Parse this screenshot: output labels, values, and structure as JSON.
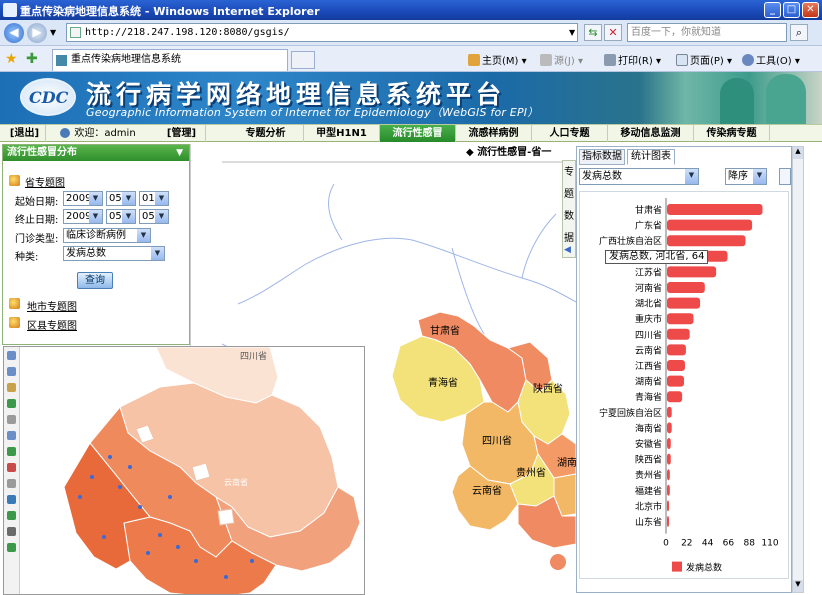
{
  "browser": {
    "window_title": "重点传染病地理信息系统 - Windows Internet Explorer",
    "url": "http://218.247.198.120:8080/gsgis/",
    "search_placeholder": "百度一下，你就知道",
    "tab_title": "重点传染病地理信息系统",
    "toolbar": {
      "home": "主页(M)",
      "feeds": "源(J)",
      "print": "打印(R)",
      "page": "页面(P)",
      "tools": "工具(O)"
    }
  },
  "banner": {
    "logo_text": "CDC",
    "title": "流行病学网络地理信息系统平台",
    "subtitle": "Geographic Information System of Internet for Epidemiology（WebGIS for EPI）"
  },
  "menubar": {
    "logout": "[退出]",
    "welcome": "欢迎：admin",
    "manage": "[管理]",
    "items": [
      "专题分析",
      "甲型H1N1",
      "流行性感冒",
      "流感样病例",
      "人口专题",
      "移动信息监测",
      "传染病专题"
    ],
    "active_index": 2
  },
  "left_panel": {
    "header": "流行性感冒分布",
    "province_map_link": "省专题图",
    "start_label": "起始日期:",
    "start_date": {
      "year": "2009",
      "month": "05",
      "day": "01"
    },
    "end_label": "终止日期:",
    "end_date": {
      "year": "2009",
      "month": "05",
      "day": "05"
    },
    "clinic_label": "门诊类型:",
    "clinic_value": "临床诊断病例",
    "category_label": "种类:",
    "category_value": "发病总数",
    "query_button": "查询",
    "city_map_link": "地市专题图",
    "county_map_link": "区县专题图"
  },
  "main_map": {
    "title": "流行性感冒-省一",
    "province_labels": [
      "甘肃省",
      "青海省",
      "陕西省",
      "四川省",
      "贵州省",
      "湖南",
      "云南省"
    ]
  },
  "vertical_tab": [
    "专",
    "题",
    "数",
    "据"
  ],
  "stats_panel": {
    "tabs": [
      "指标数据",
      "统计图表"
    ],
    "active_tab": 1,
    "metric_select": "发病总数",
    "order_select": "降序",
    "tooltip": "发病总数, 河北省, 64"
  },
  "chart_data": {
    "type": "bar",
    "orientation": "horizontal",
    "categories": [
      "甘肃省",
      "广东省",
      "广西壮族自治区",
      "河北省",
      "江苏省",
      "河南省",
      "湖北省",
      "重庆市",
      "四川省",
      "云南省",
      "江西省",
      "湖南省",
      "青海省",
      "宁夏回族自治区",
      "海南省",
      "安徽省",
      "陕西省",
      "贵州省",
      "福建省",
      "北京市",
      "山东省"
    ],
    "series": [
      {
        "name": "发病总数",
        "values": [
          101,
          90,
          83,
          64,
          52,
          40,
          35,
          28,
          24,
          20,
          19,
          18,
          16,
          5,
          5,
          4,
          4,
          3,
          3,
          2,
          2
        ],
        "color": "#ee4a4a"
      }
    ],
    "xticks": [
      0,
      22,
      44,
      66,
      88,
      110
    ],
    "xlim": [
      0,
      110
    ],
    "legend": "bottom"
  },
  "inset_map": {
    "province_label": "四川省",
    "capital_label": "云南省"
  }
}
